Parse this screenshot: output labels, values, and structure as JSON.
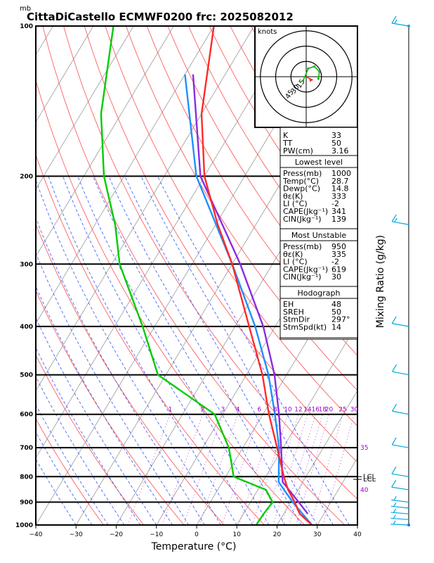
{
  "chart_data": {
    "type": "line",
    "title": "CittaDiCastello ECMWF0200 frc: 2025082012",
    "pressure_unit_label": "mb",
    "xlabel": "Temperature (°C)",
    "ylabel": "Mixing Ratio (g/kg)",
    "xlim": [
      -40,
      40
    ],
    "ylim": [
      1000,
      100
    ],
    "x_ticks": [
      -40,
      -30,
      -20,
      -10,
      0,
      10,
      20,
      30,
      40
    ],
    "pressure_ticks": [
      100,
      200,
      300,
      400,
      500,
      600,
      700,
      800,
      900,
      1000
    ],
    "mixing_ratio_labels": [
      "1",
      "2",
      "3",
      "4",
      "6",
      "8",
      "10",
      "12",
      "14",
      "16",
      "18",
      "20",
      "25",
      "30"
    ],
    "theta_e_labels": [
      "35",
      "40"
    ],
    "lcl_labels": [
      "LCL",
      "LCL"
    ],
    "series": [
      {
        "key": "temperature",
        "color": "#ff2a2a",
        "points": [
          [
            1000,
            28.7
          ],
          [
            950,
            24.0
          ],
          [
            925,
            22.5
          ],
          [
            900,
            21.0
          ],
          [
            850,
            17.5
          ],
          [
            800,
            14.5
          ],
          [
            700,
            8.5
          ],
          [
            600,
            1.5
          ],
          [
            500,
            -6.0
          ],
          [
            400,
            -16.5
          ],
          [
            300,
            -30.0
          ],
          [
            250,
            -39.5
          ],
          [
            200,
            -50.0
          ],
          [
            150,
            -60.0
          ],
          [
            100,
            -70.0
          ]
        ]
      },
      {
        "key": "dewpoint",
        "color": "#00cc00",
        "points": [
          [
            1000,
            14.8
          ],
          [
            950,
            15.0
          ],
          [
            900,
            15.5
          ],
          [
            850,
            12.0
          ],
          [
            800,
            2.0
          ],
          [
            700,
            -3.5
          ],
          [
            600,
            -12.0
          ],
          [
            500,
            -32.0
          ],
          [
            400,
            -43.0
          ],
          [
            300,
            -58.0
          ],
          [
            250,
            -65.0
          ],
          [
            200,
            -75.0
          ],
          [
            150,
            -85.0
          ],
          [
            100,
            -95.0
          ]
        ]
      },
      {
        "key": "parcel_surface",
        "color": "#1e90ff",
        "points": [
          [
            1000,
            28.7
          ],
          [
            900,
            20.5
          ],
          [
            820,
            14.0
          ],
          [
            700,
            9.0
          ],
          [
            600,
            3.0
          ],
          [
            500,
            -4.5
          ],
          [
            400,
            -15.0
          ],
          [
            300,
            -30.0
          ],
          [
            200,
            -52.0
          ],
          [
            125,
            -70.0
          ]
        ]
      },
      {
        "key": "parcel_most_unstable",
        "color": "#8a2be2",
        "points": [
          [
            950,
            26.0
          ],
          [
            900,
            22.0
          ],
          [
            820,
            15.0
          ],
          [
            700,
            9.5
          ],
          [
            600,
            4.0
          ],
          [
            500,
            -3.0
          ],
          [
            400,
            -13.0
          ],
          [
            300,
            -28.0
          ],
          [
            200,
            -51.0
          ],
          [
            125,
            -68.0
          ]
        ]
      }
    ],
    "wind_barbs": [
      {
        "p": 1000,
        "speed_kt": 5,
        "dir": 200
      },
      {
        "p": 975,
        "speed_kt": 5,
        "dir": 210
      },
      {
        "p": 950,
        "speed_kt": 5,
        "dir": 220
      },
      {
        "p": 925,
        "speed_kt": 5,
        "dir": 230
      },
      {
        "p": 900,
        "speed_kt": 5,
        "dir": 240
      },
      {
        "p": 850,
        "speed_kt": 10,
        "dir": 250
      },
      {
        "p": 800,
        "speed_kt": 10,
        "dir": 255
      },
      {
        "p": 700,
        "speed_kt": 10,
        "dir": 260
      },
      {
        "p": 600,
        "speed_kt": 10,
        "dir": 265
      },
      {
        "p": 500,
        "speed_kt": 10,
        "dir": 265
      },
      {
        "p": 400,
        "speed_kt": 10,
        "dir": 260
      },
      {
        "p": 250,
        "speed_kt": 15,
        "dir": 260
      },
      {
        "p": 100,
        "speed_kt": 15,
        "dir": 255
      }
    ],
    "hodograph": {
      "title": "knots",
      "ring_labels": [
        "15",
        "30",
        "45"
      ],
      "path": [
        [
          -3,
          -4
        ],
        [
          2,
          8
        ],
        [
          8,
          10
        ],
        [
          13,
          5
        ],
        [
          12,
          -2
        ]
      ],
      "storm_motion": [
        5,
        -3
      ]
    },
    "indices_top": [
      {
        "label": "K",
        "value": "33"
      },
      {
        "label": "TT",
        "value": "50"
      },
      {
        "label": "PW(cm)",
        "value": "3.16"
      }
    ],
    "lowest_level": {
      "header": "Lowest level",
      "rows": [
        {
          "label": "Press(mb)",
          "value": "1000"
        },
        {
          "label": "Temp(°C)",
          "value": "28.7"
        },
        {
          "label": "Dewp(°C)",
          "value": "14.8"
        },
        {
          "label": "θε(K)",
          "value": "333"
        },
        {
          "label": "LI (°C)",
          "value": "-2"
        },
        {
          "label": "CAPE(Jkg⁻¹)",
          "value": "341"
        },
        {
          "label": "CIN(Jkg⁻¹)",
          "value": "139"
        }
      ]
    },
    "most_unstable": {
      "header": "Most Unstable",
      "rows": [
        {
          "label": "Press(mb)",
          "value": "950"
        },
        {
          "label": "θε(K)",
          "value": "335"
        },
        {
          "label": "LI (°C)",
          "value": "-2"
        },
        {
          "label": "CAPE(Jkg⁻¹)",
          "value": "619"
        },
        {
          "label": "CIN(Jkg⁻¹)",
          "value": "30"
        }
      ]
    },
    "hodograph_params": {
      "header": "Hodograph",
      "rows": [
        {
          "label": "EH",
          "value": "48"
        },
        {
          "label": "SREH",
          "value": "50"
        },
        {
          "label": "StmDir",
          "value": "297°"
        },
        {
          "label": "StmSpd(kt)",
          "value": "14"
        }
      ]
    }
  }
}
